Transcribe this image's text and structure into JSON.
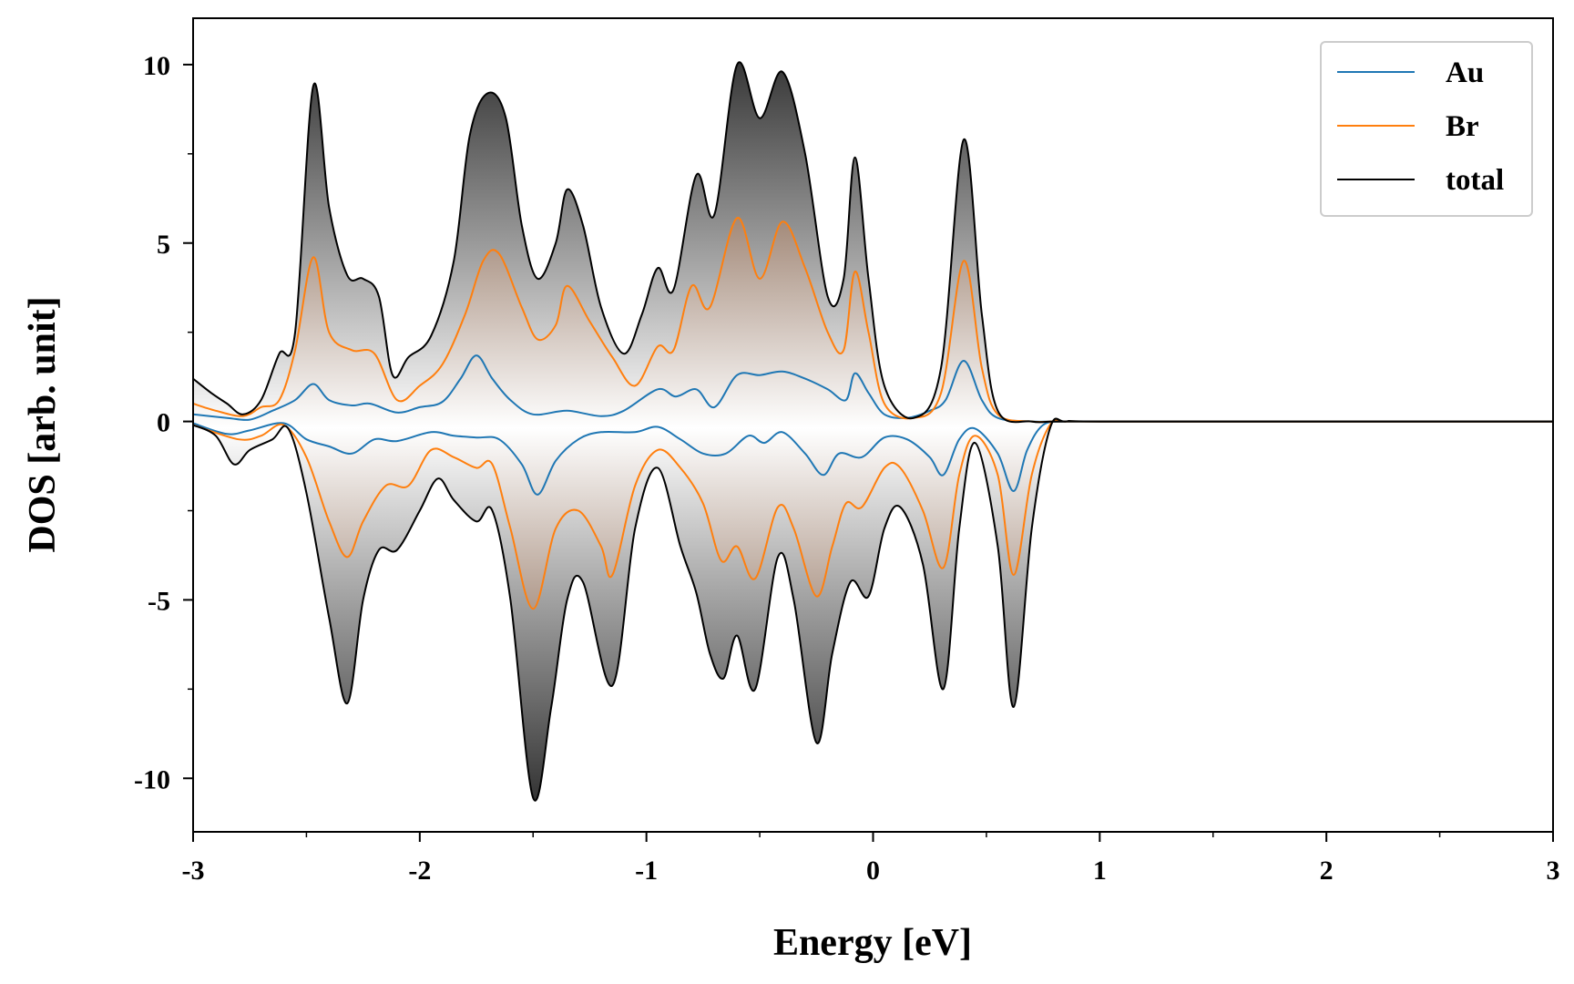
{
  "chart_data": {
    "type": "line",
    "xlabel": "Energy [eV]",
    "ylabel": "DOS [arb. unit]",
    "xlim": [
      -3,
      3
    ],
    "ylim": [
      -11.5,
      11.3
    ],
    "x_ticks": [
      -3,
      -2,
      -1,
      0,
      1,
      2,
      3
    ],
    "x_tick_labels": [
      "-3",
      "-2",
      "-1",
      "0",
      "1",
      "2",
      "3"
    ],
    "y_ticks": [
      -10,
      -5,
      0,
      5,
      10
    ],
    "y_tick_labels": [
      "-10",
      "-5",
      "0",
      "5",
      "10"
    ],
    "legend_position": "top-right",
    "fill_under_curves": true,
    "series": [
      {
        "name": "Au",
        "color": "#1f77b4",
        "up": [
          [
            -3.0,
            0.2
          ],
          [
            -2.85,
            0.1
          ],
          [
            -2.75,
            0.05
          ],
          [
            -2.65,
            0.3
          ],
          [
            -2.55,
            0.6
          ],
          [
            -2.47,
            1.05
          ],
          [
            -2.4,
            0.6
          ],
          [
            -2.3,
            0.45
          ],
          [
            -2.22,
            0.5
          ],
          [
            -2.1,
            0.25
          ],
          [
            -2.0,
            0.4
          ],
          [
            -1.9,
            0.55
          ],
          [
            -1.82,
            1.2
          ],
          [
            -1.75,
            1.85
          ],
          [
            -1.68,
            1.2
          ],
          [
            -1.6,
            0.6
          ],
          [
            -1.5,
            0.2
          ],
          [
            -1.35,
            0.3
          ],
          [
            -1.2,
            0.15
          ],
          [
            -1.1,
            0.3
          ],
          [
            -0.95,
            0.9
          ],
          [
            -0.87,
            0.7
          ],
          [
            -0.78,
            0.9
          ],
          [
            -0.7,
            0.4
          ],
          [
            -0.6,
            1.3
          ],
          [
            -0.5,
            1.3
          ],
          [
            -0.4,
            1.4
          ],
          [
            -0.3,
            1.2
          ],
          [
            -0.2,
            0.9
          ],
          [
            -0.12,
            0.6
          ],
          [
            -0.08,
            1.35
          ],
          [
            -0.02,
            0.8
          ],
          [
            0.05,
            0.2
          ],
          [
            0.15,
            0.1
          ],
          [
            0.25,
            0.3
          ],
          [
            0.32,
            0.6
          ],
          [
            0.4,
            1.7
          ],
          [
            0.48,
            0.6
          ],
          [
            0.55,
            0.1
          ],
          [
            0.7,
            0.0
          ],
          [
            0.8,
            0.0
          ],
          [
            1.0,
            0.0
          ],
          [
            2.0,
            0.0
          ],
          [
            3.0,
            0.0
          ]
        ],
        "down": [
          [
            -3.0,
            -0.05
          ],
          [
            -2.85,
            -0.35
          ],
          [
            -2.75,
            -0.25
          ],
          [
            -2.6,
            -0.05
          ],
          [
            -2.5,
            -0.5
          ],
          [
            -2.4,
            -0.7
          ],
          [
            -2.3,
            -0.9
          ],
          [
            -2.2,
            -0.5
          ],
          [
            -2.1,
            -0.55
          ],
          [
            -1.95,
            -0.3
          ],
          [
            -1.85,
            -0.4
          ],
          [
            -1.75,
            -0.45
          ],
          [
            -1.65,
            -0.5
          ],
          [
            -1.55,
            -1.2
          ],
          [
            -1.48,
            -2.05
          ],
          [
            -1.4,
            -1.1
          ],
          [
            -1.3,
            -0.5
          ],
          [
            -1.2,
            -0.3
          ],
          [
            -1.05,
            -0.3
          ],
          [
            -0.95,
            -0.15
          ],
          [
            -0.85,
            -0.5
          ],
          [
            -0.75,
            -0.9
          ],
          [
            -0.65,
            -0.9
          ],
          [
            -0.55,
            -0.4
          ],
          [
            -0.48,
            -0.6
          ],
          [
            -0.4,
            -0.3
          ],
          [
            -0.3,
            -0.9
          ],
          [
            -0.22,
            -1.5
          ],
          [
            -0.15,
            -0.9
          ],
          [
            -0.05,
            -1.0
          ],
          [
            0.05,
            -0.45
          ],
          [
            0.15,
            -0.5
          ],
          [
            0.25,
            -1.0
          ],
          [
            0.31,
            -1.5
          ],
          [
            0.38,
            -0.5
          ],
          [
            0.45,
            -0.2
          ],
          [
            0.55,
            -0.9
          ],
          [
            0.62,
            -1.95
          ],
          [
            0.68,
            -0.8
          ],
          [
            0.75,
            -0.1
          ],
          [
            0.85,
            0.0
          ],
          [
            1.0,
            0.0
          ],
          [
            2.0,
            0.0
          ],
          [
            3.0,
            0.0
          ]
        ]
      },
      {
        "name": "Br",
        "color": "#ff7f0e",
        "up": [
          [
            -3.0,
            0.5
          ],
          [
            -2.9,
            0.3
          ],
          [
            -2.78,
            0.15
          ],
          [
            -2.7,
            0.4
          ],
          [
            -2.62,
            0.6
          ],
          [
            -2.55,
            2.0
          ],
          [
            -2.47,
            4.6
          ],
          [
            -2.4,
            2.5
          ],
          [
            -2.3,
            2.0
          ],
          [
            -2.2,
            1.9
          ],
          [
            -2.1,
            0.6
          ],
          [
            -2.0,
            1.0
          ],
          [
            -1.9,
            1.6
          ],
          [
            -1.8,
            3.0
          ],
          [
            -1.72,
            4.5
          ],
          [
            -1.65,
            4.7
          ],
          [
            -1.55,
            3.2
          ],
          [
            -1.48,
            2.3
          ],
          [
            -1.4,
            2.7
          ],
          [
            -1.35,
            3.8
          ],
          [
            -1.25,
            2.8
          ],
          [
            -1.15,
            1.8
          ],
          [
            -1.05,
            1.0
          ],
          [
            -0.95,
            2.1
          ],
          [
            -0.88,
            2.0
          ],
          [
            -0.8,
            3.8
          ],
          [
            -0.72,
            3.2
          ],
          [
            -0.6,
            5.7
          ],
          [
            -0.5,
            4.0
          ],
          [
            -0.4,
            5.6
          ],
          [
            -0.3,
            4.3
          ],
          [
            -0.2,
            2.5
          ],
          [
            -0.13,
            2.0
          ],
          [
            -0.08,
            4.2
          ],
          [
            -0.02,
            2.5
          ],
          [
            0.05,
            0.5
          ],
          [
            0.18,
            0.1
          ],
          [
            0.3,
            0.8
          ],
          [
            0.4,
            4.5
          ],
          [
            0.48,
            1.5
          ],
          [
            0.55,
            0.2
          ],
          [
            0.7,
            0.0
          ],
          [
            0.8,
            0.0
          ],
          [
            1.0,
            0.0
          ],
          [
            2.0,
            0.0
          ],
          [
            3.0,
            0.0
          ]
        ],
        "down": [
          [
            -3.0,
            -0.1
          ],
          [
            -2.8,
            -0.5
          ],
          [
            -2.7,
            -0.4
          ],
          [
            -2.6,
            -0.1
          ],
          [
            -2.5,
            -1.0
          ],
          [
            -2.4,
            -2.8
          ],
          [
            -2.32,
            -3.8
          ],
          [
            -2.25,
            -2.8
          ],
          [
            -2.15,
            -1.8
          ],
          [
            -2.05,
            -1.8
          ],
          [
            -1.95,
            -0.8
          ],
          [
            -1.85,
            -1.0
          ],
          [
            -1.75,
            -1.3
          ],
          [
            -1.68,
            -1.2
          ],
          [
            -1.6,
            -3.0
          ],
          [
            -1.5,
            -5.25
          ],
          [
            -1.4,
            -3.0
          ],
          [
            -1.3,
            -2.5
          ],
          [
            -1.2,
            -3.5
          ],
          [
            -1.15,
            -4.3
          ],
          [
            -1.05,
            -1.8
          ],
          [
            -0.95,
            -0.8
          ],
          [
            -0.85,
            -1.3
          ],
          [
            -0.75,
            -2.3
          ],
          [
            -0.67,
            -3.9
          ],
          [
            -0.6,
            -3.5
          ],
          [
            -0.52,
            -4.4
          ],
          [
            -0.42,
            -2.4
          ],
          [
            -0.35,
            -3.0
          ],
          [
            -0.25,
            -4.9
          ],
          [
            -0.18,
            -3.5
          ],
          [
            -0.12,
            -2.3
          ],
          [
            -0.05,
            -2.4
          ],
          [
            0.05,
            -1.3
          ],
          [
            0.12,
            -1.3
          ],
          [
            0.22,
            -2.5
          ],
          [
            0.31,
            -4.1
          ],
          [
            0.38,
            -1.5
          ],
          [
            0.45,
            -0.4
          ],
          [
            0.55,
            -1.5
          ],
          [
            0.62,
            -4.3
          ],
          [
            0.7,
            -1.5
          ],
          [
            0.78,
            -0.1
          ],
          [
            0.85,
            0.0
          ],
          [
            1.0,
            0.0
          ],
          [
            2.0,
            0.0
          ],
          [
            3.0,
            0.0
          ]
        ]
      },
      {
        "name": "total",
        "color": "#000000",
        "up": [
          [
            -3.0,
            1.2
          ],
          [
            -2.92,
            0.8
          ],
          [
            -2.85,
            0.5
          ],
          [
            -2.78,
            0.2
          ],
          [
            -2.7,
            0.6
          ],
          [
            -2.62,
            1.9
          ],
          [
            -2.55,
            2.5
          ],
          [
            -2.47,
            9.4
          ],
          [
            -2.4,
            6.0
          ],
          [
            -2.32,
            4.1
          ],
          [
            -2.25,
            4.0
          ],
          [
            -2.18,
            3.5
          ],
          [
            -2.12,
            1.3
          ],
          [
            -2.05,
            1.8
          ],
          [
            -1.95,
            2.4
          ],
          [
            -1.85,
            4.5
          ],
          [
            -1.78,
            8.0
          ],
          [
            -1.7,
            9.2
          ],
          [
            -1.62,
            8.5
          ],
          [
            -1.55,
            5.5
          ],
          [
            -1.48,
            4.0
          ],
          [
            -1.4,
            5.0
          ],
          [
            -1.35,
            6.5
          ],
          [
            -1.28,
            5.5
          ],
          [
            -1.2,
            3.2
          ],
          [
            -1.1,
            1.9
          ],
          [
            -1.02,
            3.0
          ],
          [
            -0.95,
            4.3
          ],
          [
            -0.88,
            3.7
          ],
          [
            -0.78,
            6.9
          ],
          [
            -0.7,
            5.8
          ],
          [
            -0.6,
            10.0
          ],
          [
            -0.5,
            8.5
          ],
          [
            -0.4,
            9.8
          ],
          [
            -0.3,
            7.5
          ],
          [
            -0.2,
            3.5
          ],
          [
            -0.13,
            4.0
          ],
          [
            -0.08,
            7.4
          ],
          [
            -0.02,
            4.0
          ],
          [
            0.05,
            1.0
          ],
          [
            0.18,
            0.1
          ],
          [
            0.3,
            1.5
          ],
          [
            0.4,
            7.9
          ],
          [
            0.48,
            3.0
          ],
          [
            0.55,
            0.3
          ],
          [
            0.7,
            0.0
          ],
          [
            0.8,
            0.0
          ],
          [
            1.0,
            0.0
          ],
          [
            2.0,
            0.0
          ],
          [
            3.0,
            0.0
          ]
        ],
        "down": [
          [
            -3.0,
            -0.1
          ],
          [
            -2.9,
            -0.4
          ],
          [
            -2.82,
            -1.2
          ],
          [
            -2.75,
            -0.8
          ],
          [
            -2.65,
            -0.5
          ],
          [
            -2.58,
            -0.2
          ],
          [
            -2.5,
            -2.0
          ],
          [
            -2.4,
            -5.5
          ],
          [
            -2.32,
            -7.9
          ],
          [
            -2.25,
            -5.0
          ],
          [
            -2.18,
            -3.6
          ],
          [
            -2.1,
            -3.6
          ],
          [
            -2.0,
            -2.5
          ],
          [
            -1.92,
            -1.6
          ],
          [
            -1.85,
            -2.2
          ],
          [
            -1.75,
            -2.8
          ],
          [
            -1.68,
            -2.5
          ],
          [
            -1.6,
            -5.0
          ],
          [
            -1.5,
            -10.55
          ],
          [
            -1.42,
            -8.0
          ],
          [
            -1.35,
            -5.0
          ],
          [
            -1.28,
            -4.5
          ],
          [
            -1.15,
            -7.4
          ],
          [
            -1.05,
            -3.0
          ],
          [
            -0.95,
            -1.3
          ],
          [
            -0.85,
            -3.5
          ],
          [
            -0.78,
            -4.8
          ],
          [
            -0.72,
            -6.5
          ],
          [
            -0.66,
            -7.2
          ],
          [
            -0.6,
            -6.0
          ],
          [
            -0.52,
            -7.5
          ],
          [
            -0.42,
            -3.8
          ],
          [
            -0.35,
            -5.0
          ],
          [
            -0.25,
            -9.0
          ],
          [
            -0.18,
            -6.5
          ],
          [
            -0.1,
            -4.5
          ],
          [
            -0.02,
            -4.9
          ],
          [
            0.05,
            -3.0
          ],
          [
            0.12,
            -2.4
          ],
          [
            0.22,
            -4.0
          ],
          [
            0.31,
            -7.5
          ],
          [
            0.38,
            -3.0
          ],
          [
            0.45,
            -0.6
          ],
          [
            0.55,
            -3.5
          ],
          [
            0.62,
            -8.0
          ],
          [
            0.7,
            -3.0
          ],
          [
            0.78,
            -0.2
          ],
          [
            0.85,
            0.0
          ],
          [
            1.0,
            0.0
          ],
          [
            2.0,
            0.0
          ],
          [
            3.0,
            0.0
          ]
        ]
      }
    ]
  }
}
